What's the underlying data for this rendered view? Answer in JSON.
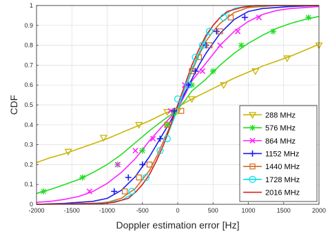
{
  "chart_data": {
    "type": "line",
    "title": "",
    "xlabel": "Doppler estimation error [Hz]",
    "ylabel": "CDF",
    "xlim": [
      -2000,
      2000
    ],
    "ylim": [
      0,
      1
    ],
    "xticks": [
      -2000,
      -1500,
      -1000,
      -500,
      0,
      500,
      1000,
      1500,
      2000
    ],
    "yticks": [
      0,
      0.1,
      0.2,
      0.3,
      0.4,
      0.5,
      0.6,
      0.7,
      0.8,
      0.9,
      1
    ],
    "xtick_labels": [
      "-2000",
      "-1500",
      "-1000",
      "-500",
      "0",
      "500",
      "1000",
      "1500",
      "2000"
    ],
    "ytick_labels": [
      "0",
      "0.1",
      "0.2",
      "0.3",
      "0.4",
      "0.5",
      "0.6",
      "0.7",
      "0.8",
      "0.9",
      "1"
    ],
    "grid": true,
    "legend_position": "bottom-right",
    "series": [
      {
        "name": "288 MHz",
        "color": "#c8b400",
        "marker": "triangle-down",
        "x": [
          -2000,
          -1800,
          -1600,
          -1400,
          -1200,
          -1000,
          -800,
          -600,
          -400,
          -200,
          -100,
          0,
          100,
          200,
          400,
          600,
          800,
          1000,
          1200,
          1400,
          1600,
          1800,
          2000
        ],
        "y": [
          0.21,
          0.235,
          0.255,
          0.28,
          0.305,
          0.33,
          0.36,
          0.39,
          0.42,
          0.455,
          0.47,
          0.49,
          0.51,
          0.53,
          0.565,
          0.6,
          0.635,
          0.665,
          0.695,
          0.72,
          0.745,
          0.775,
          0.805
        ],
        "marker_x": [
          -1550,
          -1050,
          -550,
          -150,
          0,
          200,
          650,
          1100,
          1550,
          2000
        ],
        "marker_y": [
          0.265,
          0.335,
          0.4,
          0.465,
          0.47,
          0.53,
          0.6,
          0.67,
          0.735,
          0.8
        ]
      },
      {
        "name": "576 MHz",
        "color": "#22dd22",
        "marker": "asterisk",
        "x": [
          -2000,
          -1800,
          -1600,
          -1400,
          -1200,
          -1000,
          -800,
          -600,
          -400,
          -200,
          -100,
          0,
          100,
          200,
          400,
          600,
          800,
          1000,
          1200,
          1400,
          1600,
          1800,
          2000
        ],
        "y": [
          0.055,
          0.075,
          0.1,
          0.125,
          0.16,
          0.2,
          0.25,
          0.31,
          0.37,
          0.425,
          0.45,
          0.48,
          0.52,
          0.57,
          0.63,
          0.7,
          0.76,
          0.81,
          0.85,
          0.885,
          0.91,
          0.93,
          0.945
        ],
        "marker_x": [
          -1900,
          -1350,
          -850,
          -500,
          -150,
          -50,
          200,
          500,
          900,
          1350,
          1850
        ],
        "marker_y": [
          0.065,
          0.135,
          0.2,
          0.27,
          0.4,
          0.46,
          0.6,
          0.67,
          0.8,
          0.87,
          0.94
        ]
      },
      {
        "name": "864 MHz",
        "color": "#ff22ff",
        "marker": "cross",
        "x": [
          -2000,
          -1800,
          -1600,
          -1400,
          -1200,
          -1000,
          -800,
          -600,
          -400,
          -200,
          -100,
          0,
          100,
          200,
          400,
          600,
          800,
          1000,
          1200,
          1400,
          1600,
          1800,
          2000
        ],
        "y": [
          0.01,
          0.015,
          0.025,
          0.04,
          0.065,
          0.105,
          0.16,
          0.23,
          0.32,
          0.4,
          0.44,
          0.48,
          0.55,
          0.62,
          0.71,
          0.8,
          0.87,
          0.92,
          0.955,
          0.975,
          0.985,
          0.99,
          0.995
        ],
        "marker_x": [
          -1250,
          -850,
          -600,
          -350,
          -100,
          100,
          350,
          600,
          850,
          1150
        ],
        "marker_y": [
          0.065,
          0.2,
          0.27,
          0.33,
          0.47,
          0.6,
          0.67,
          0.8,
          0.87,
          0.94
        ]
      },
      {
        "name": "1152 MHz",
        "color": "#1a1aee",
        "marker": "plus",
        "x": [
          -2000,
          -1600,
          -1200,
          -1000,
          -800,
          -600,
          -400,
          -300,
          -200,
          -100,
          0,
          100,
          200,
          300,
          400,
          600,
          800,
          1000,
          1200,
          1600,
          2000
        ],
        "y": [
          0.0,
          0.005,
          0.015,
          0.03,
          0.07,
          0.14,
          0.24,
          0.3,
          0.36,
          0.42,
          0.49,
          0.56,
          0.63,
          0.7,
          0.76,
          0.86,
          0.93,
          0.97,
          0.985,
          0.995,
          1.0
        ],
        "marker_x": [
          -900,
          -700,
          -500,
          -250,
          -50,
          150,
          250,
          400,
          550,
          950
        ],
        "marker_y": [
          0.065,
          0.135,
          0.2,
          0.33,
          0.47,
          0.6,
          0.67,
          0.8,
          0.87,
          0.94
        ]
      },
      {
        "name": "1440 MHz",
        "color": "#d2691e",
        "marker": "square",
        "x": [
          -2000,
          -1200,
          -1000,
          -800,
          -600,
          -400,
          -300,
          -200,
          -100,
          0,
          100,
          200,
          300,
          400,
          500,
          600,
          800,
          1000,
          1400,
          2000
        ],
        "y": [
          0.0,
          0.005,
          0.01,
          0.03,
          0.08,
          0.17,
          0.24,
          0.32,
          0.4,
          0.48,
          0.58,
          0.67,
          0.75,
          0.82,
          0.87,
          0.91,
          0.965,
          0.99,
          1.0,
          1.0
        ],
        "marker_x": [
          -750,
          -550,
          -400,
          -150,
          50,
          200,
          300,
          450,
          600,
          750
        ],
        "marker_y": [
          0.065,
          0.135,
          0.2,
          0.4,
          0.47,
          0.67,
          0.74,
          0.8,
          0.87,
          0.94
        ]
      },
      {
        "name": "1728 MHz",
        "color": "#00e5ee",
        "marker": "circle",
        "x": [
          -2000,
          -1200,
          -1000,
          -800,
          -600,
          -500,
          -400,
          -300,
          -200,
          -100,
          0,
          100,
          200,
          300,
          400,
          500,
          600,
          800,
          1000,
          1400,
          2000
        ],
        "y": [
          0.0,
          0.003,
          0.008,
          0.02,
          0.06,
          0.1,
          0.15,
          0.22,
          0.3,
          0.39,
          0.48,
          0.58,
          0.68,
          0.76,
          0.84,
          0.9,
          0.94,
          0.985,
          0.998,
          1.0,
          1.0
        ],
        "marker_x": [
          -650,
          -450,
          -250,
          -150,
          0,
          150,
          250,
          350,
          450,
          650
        ],
        "marker_y": [
          0.065,
          0.135,
          0.27,
          0.33,
          0.53,
          0.6,
          0.74,
          0.8,
          0.87,
          0.94
        ]
      },
      {
        "name": "2016 MHz",
        "color": "#e41a1a",
        "marker": "none",
        "x": [
          -2000,
          -1100,
          -900,
          -700,
          -600,
          -500,
          -400,
          -300,
          -200,
          -100,
          0,
          100,
          200,
          300,
          400,
          500,
          600,
          700,
          900,
          1100,
          2000
        ],
        "y": [
          0.0,
          0.003,
          0.01,
          0.03,
          0.06,
          0.1,
          0.15,
          0.22,
          0.3,
          0.4,
          0.5,
          0.6,
          0.7,
          0.78,
          0.85,
          0.9,
          0.94,
          0.97,
          0.99,
          1.0,
          1.0
        ],
        "marker_x": [],
        "marker_y": []
      }
    ]
  }
}
